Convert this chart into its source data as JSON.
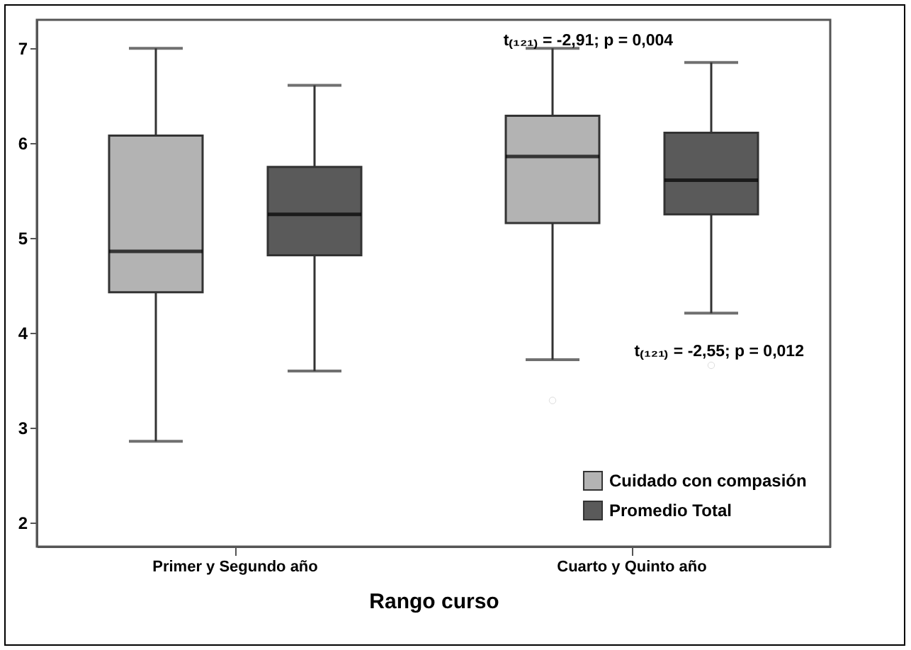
{
  "chart_data": {
    "type": "box",
    "xlabel": "Rango curso",
    "categories": [
      "Primer y Segundo año",
      "Cuarto y Quinto año"
    ],
    "ylim": [
      1.75,
      7.3
    ],
    "yticks": [
      2,
      3,
      4,
      5,
      6,
      7
    ],
    "grid": false,
    "legend": "bottom right",
    "series": [
      {
        "name": "Cuidado con compasión",
        "color": "#b3b3b3",
        "boxes": [
          {
            "low": 2.86,
            "q1": 4.43,
            "median": 4.86,
            "q3": 6.08,
            "high": 7.0
          },
          {
            "low": 3.72,
            "q1": 5.16,
            "median": 5.86,
            "q3": 6.29,
            "high": 7.0,
            "outliers": [
              3.29
            ]
          }
        ]
      },
      {
        "name": "Promedio Total",
        "color": "#5a5a5a",
        "boxes": [
          {
            "low": 3.6,
            "q1": 4.82,
            "median": 5.25,
            "q3": 5.75,
            "high": 6.61
          },
          {
            "low": 4.21,
            "q1": 5.25,
            "median": 5.61,
            "q3": 6.11,
            "high": 6.85,
            "outliers": [
              3.66
            ]
          }
        ]
      }
    ],
    "annotations": [
      "t₍₁₂₁₎ = -2,91; p = 0,004",
      "t₍₁₂₁₎ = -2,55; p = 0,012"
    ]
  }
}
